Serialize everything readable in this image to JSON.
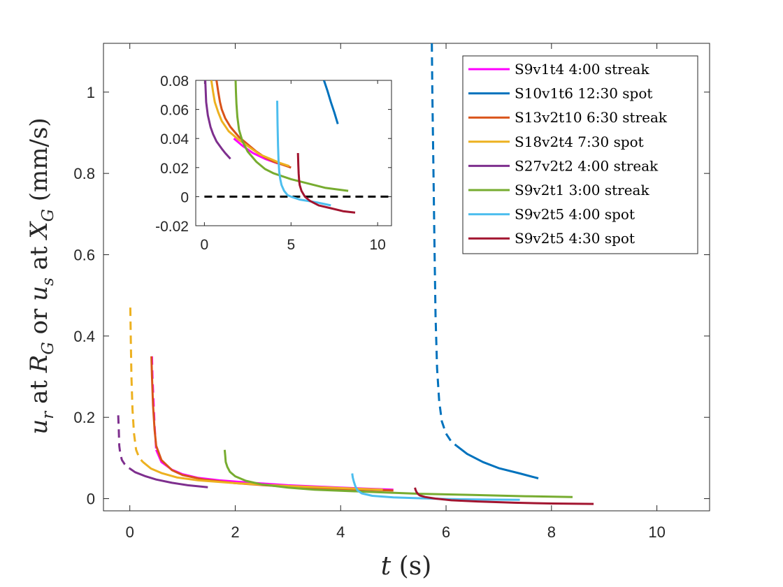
{
  "chart_data": {
    "type": "line",
    "main": {
      "xlabel": {
        "var": "t",
        "unit": "(s)"
      },
      "ylabel": {
        "parts": [
          {
            "t": "u",
            "i": true
          },
          {
            "t": "r",
            "i": true,
            "s": true
          },
          {
            "t": " at "
          },
          {
            "t": "R",
            "i": true
          },
          {
            "t": "G",
            "i": true,
            "s": true
          },
          {
            "t": " or "
          },
          {
            "t": "u",
            "i": true
          },
          {
            "t": "s",
            "i": true,
            "s": true
          },
          {
            "t": " at "
          },
          {
            "t": "X",
            "i": true
          },
          {
            "t": "G",
            "i": true,
            "s": true
          },
          {
            "t": " (mm/s)"
          }
        ]
      },
      "xlim": [
        -0.5,
        11
      ],
      "ylim": [
        -0.03,
        1.12
      ],
      "xticks": [
        0,
        2,
        4,
        6,
        8,
        10
      ],
      "xtick_labels": [
        "0",
        "2",
        "4",
        "6",
        "8",
        "10"
      ],
      "yticks": [
        0,
        0.2,
        0.4,
        0.6,
        0.8,
        1
      ],
      "ytick_labels": [
        "0",
        "0.2",
        "0.4",
        "0.6",
        "0.8",
        "1"
      ]
    },
    "inset": {
      "xlim": [
        -0.5,
        10.8
      ],
      "ylim": [
        -0.02,
        0.08
      ],
      "xticks": [
        0,
        5,
        10
      ],
      "xtick_labels": [
        "0",
        "5",
        "10"
      ],
      "yticks": [
        -0.02,
        0,
        0.02,
        0.04,
        0.06,
        0.08
      ],
      "ytick_labels": [
        "-0.02",
        "0",
        "0.02",
        "0.04",
        "0.06",
        "0.08"
      ],
      "zero_line": {
        "y": 0,
        "x": [
          0,
          10.8
        ],
        "color": "#000000"
      }
    },
    "legend": {
      "position": "top-right"
    },
    "series": [
      {
        "name": "S9v1t4 4:00 streak",
        "color": "#ff00ff",
        "main": [
          {
            "dash": true,
            "x": [
              0.42,
              0.43,
              0.45,
              0.47,
              0.5
            ],
            "y": [
              0.35,
              0.3,
              0.24,
              0.18,
              0.12
            ]
          },
          {
            "dash": false,
            "x": [
              0.5,
              0.6,
              0.8,
              1.0,
              1.3,
              1.7,
              2.2,
              3,
              4,
              5
            ],
            "y": [
              0.12,
              0.09,
              0.071,
              0.06,
              0.051,
              0.045,
              0.04,
              0.033,
              0.027,
              0.022
            ]
          }
        ],
        "inset": [
          {
            "dash": false,
            "x": [
              1.7,
              2.2,
              2.8,
              3.5,
              4.2,
              4.9
            ],
            "y": [
              0.04,
              0.035,
              0.03,
              0.026,
              0.023,
              0.021
            ]
          }
        ]
      },
      {
        "name": "S10v1t6 12:30 spot",
        "color": "#0072bd",
        "main": [
          {
            "dash": true,
            "x": [
              5.73,
              5.74,
              5.76,
              5.78,
              5.8,
              5.83,
              5.87,
              5.92,
              6.0,
              6.1,
              6.2
            ],
            "y": [
              1.12,
              1.0,
              0.82,
              0.62,
              0.45,
              0.32,
              0.24,
              0.19,
              0.16,
              0.14,
              0.13
            ]
          },
          {
            "dash": false,
            "x": [
              6.2,
              6.4,
              6.7,
              7.0,
              7.4,
              7.75
            ],
            "y": [
              0.13,
              0.11,
              0.09,
              0.075,
              0.062,
              0.05
            ]
          }
        ],
        "inset": [
          {
            "dash": false,
            "x": [
              6.9,
              7.1,
              7.3,
              7.5,
              7.7
            ],
            "y": [
              0.08,
              0.073,
              0.065,
              0.058,
              0.05
            ]
          }
        ]
      },
      {
        "name": "S13v2t10 6:30 streak",
        "color": "#d95319",
        "main": [
          {
            "dash": false,
            "x": [
              0.41,
              0.42,
              0.44,
              0.47,
              0.5,
              0.6,
              0.8,
              1.0,
              1.4,
              2.0,
              3.0,
              4.0,
              5.0
            ],
            "y": [
              0.35,
              0.3,
              0.23,
              0.17,
              0.13,
              0.095,
              0.07,
              0.058,
              0.047,
              0.038,
              0.029,
              0.024,
              0.02
            ]
          }
        ],
        "inset": [
          {
            "dash": false,
            "x": [
              0.7,
              0.8,
              0.9,
              1.0,
              1.2,
              1.5,
              2.0,
              2.5,
              3.0,
              3.5,
              4.0,
              4.5,
              5.0
            ],
            "y": [
              0.08,
              0.072,
              0.065,
              0.06,
              0.054,
              0.048,
              0.041,
              0.036,
              0.031,
              0.027,
              0.024,
              0.022,
              0.02
            ]
          }
        ]
      },
      {
        "name": "S18v2t4 7:30 spot",
        "color": "#edb120",
        "main": [
          {
            "dash": true,
            "x": [
              0.01,
              0.02,
              0.03,
              0.05,
              0.08,
              0.12,
              0.18,
              0.25
            ],
            "y": [
              0.47,
              0.38,
              0.3,
              0.22,
              0.16,
              0.12,
              0.1,
              0.09
            ]
          },
          {
            "dash": false,
            "x": [
              0.25,
              0.4,
              0.6,
              0.9,
              1.3,
              2.0,
              3.0,
              4.0,
              4.8
            ],
            "y": [
              0.09,
              0.074,
              0.063,
              0.052,
              0.045,
              0.038,
              0.031,
              0.026,
              0.022
            ]
          }
        ],
        "inset": [
          {
            "dash": false,
            "x": [
              0.4,
              0.5,
              0.6,
              0.8,
              1.0,
              1.4,
              2.0,
              2.6,
              3.2,
              3.8,
              4.4,
              4.9
            ],
            "y": [
              0.08,
              0.072,
              0.065,
              0.058,
              0.052,
              0.045,
              0.039,
              0.034,
              0.029,
              0.026,
              0.023,
              0.021
            ]
          }
        ]
      },
      {
        "name": "S27v2t2 4:00 streak",
        "color": "#7e2f8e",
        "main": [
          {
            "dash": true,
            "x": [
              -0.22,
              -0.21,
              -0.2,
              -0.18,
              -0.15,
              -0.1,
              -0.05,
              0.0
            ],
            "y": [
              0.205,
              0.17,
              0.13,
              0.11,
              0.095,
              0.085,
              0.078,
              0.074
            ]
          },
          {
            "dash": false,
            "x": [
              0.0,
              0.1,
              0.3,
              0.5,
              0.8,
              1.1,
              1.48
            ],
            "y": [
              0.074,
              0.065,
              0.055,
              0.047,
              0.039,
              0.033,
              0.028
            ]
          }
        ],
        "inset": [
          {
            "dash": false,
            "x": [
              0.05,
              0.1,
              0.2,
              0.35,
              0.5,
              0.7,
              1.0,
              1.2,
              1.5
            ],
            "y": [
              0.08,
              0.065,
              0.056,
              0.048,
              0.043,
              0.038,
              0.033,
              0.03,
              0.026
            ]
          }
        ]
      },
      {
        "name": "S9v2t1 3:00 streak",
        "color": "#77ac30",
        "main": [
          {
            "dash": false,
            "x": [
              1.8,
              1.81,
              1.82,
              1.85,
              1.9,
              2.0,
              2.2,
              2.5,
              3.0,
              3.5,
              4.5,
              5.5,
              6.5,
              7.5,
              8.4
            ],
            "y": [
              0.12,
              0.105,
              0.09,
              0.078,
              0.066,
              0.055,
              0.044,
              0.035,
              0.027,
              0.022,
              0.017,
              0.012,
              0.009,
              0.006,
              0.004
            ]
          }
        ],
        "inset": [
          {
            "dash": false,
            "x": [
              1.8,
              1.82,
              1.85,
              1.9,
              2.0,
              2.2,
              2.5,
              3.0,
              3.5,
              4.0,
              5.0,
              6.0,
              7.0,
              8.3
            ],
            "y": [
              0.08,
              0.072,
              0.064,
              0.055,
              0.046,
              0.038,
              0.031,
              0.024,
              0.019,
              0.016,
              0.012,
              0.009,
              0.006,
              0.004
            ]
          }
        ]
      },
      {
        "name": "S9v2t5 4:00 spot",
        "color": "#4dbeee",
        "main": [
          {
            "dash": false,
            "x": [
              4.22,
              4.23,
              4.25,
              4.28,
              4.32,
              4.4,
              4.6,
              5.0,
              5.5,
              6.0,
              6.6,
              7.4
            ],
            "y": [
              0.062,
              0.052,
              0.042,
              0.03,
              0.02,
              0.013,
              0.007,
              0.003,
              0.001,
              -0.001,
              -0.002,
              -0.003
            ]
          }
        ],
        "inset": [
          {
            "dash": false,
            "x": [
              4.2,
              4.22,
              4.25,
              4.28,
              4.32,
              4.38,
              4.45,
              4.6,
              4.8,
              5.0,
              5.5,
              6.0,
              6.5,
              7.3
            ],
            "y": [
              0.066,
              0.05,
              0.035,
              0.025,
              0.017,
              0.012,
              0.008,
              0.004,
              0.001,
              0.0,
              -0.002,
              -0.003,
              -0.004,
              -0.006
            ]
          }
        ]
      },
      {
        "name": "S9v2t5 4:30 spot",
        "color": "#a2142f",
        "main": [
          {
            "dash": false,
            "x": [
              5.41,
              5.42,
              5.44,
              5.47,
              5.5,
              5.6,
              5.8,
              6.1,
              6.6,
              7.3,
              8.0,
              8.8
            ],
            "y": [
              0.027,
              0.022,
              0.016,
              0.011,
              0.008,
              0.004,
              0.0,
              -0.004,
              -0.007,
              -0.01,
              -0.012,
              -0.013
            ]
          }
        ],
        "inset": [
          {
            "dash": false,
            "x": [
              5.4,
              5.42,
              5.44,
              5.47,
              5.5,
              5.6,
              5.8,
              6.1,
              6.6,
              7.3,
              8.0,
              8.7
            ],
            "y": [
              0.03,
              0.022,
              0.016,
              0.011,
              0.008,
              0.004,
              0.0,
              -0.003,
              -0.006,
              -0.008,
              -0.01,
              -0.011
            ]
          }
        ]
      }
    ]
  }
}
